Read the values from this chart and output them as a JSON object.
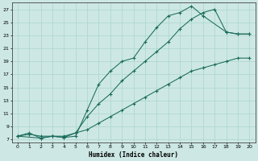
{
  "xlabel": "Humidex (Indice chaleur)",
  "bg_color": "#cde8e4",
  "grid_color": "#b0d8d0",
  "line_color": "#1a6b5a",
  "xlim": [
    -0.5,
    20.5
  ],
  "ylim": [
    6.5,
    28.0
  ],
  "xticks": [
    0,
    1,
    2,
    3,
    4,
    5,
    6,
    7,
    8,
    9,
    10,
    11,
    12,
    13,
    14,
    15,
    16,
    17,
    18,
    19,
    20
  ],
  "yticks": [
    7,
    9,
    11,
    13,
    15,
    17,
    19,
    21,
    23,
    25,
    27
  ],
  "line_peak_x": [
    0,
    1,
    2,
    3,
    4,
    5,
    6,
    7,
    8,
    9,
    10,
    11,
    12,
    13,
    14,
    15,
    16,
    18,
    19,
    20
  ],
  "line_peak_y": [
    7.5,
    8.0,
    7.2,
    7.5,
    7.3,
    7.5,
    11.5,
    15.5,
    17.5,
    19.0,
    19.5,
    22.0,
    24.2,
    26.0,
    26.5,
    27.5,
    26.0,
    23.5,
    23.2,
    23.2
  ],
  "line_mid_x": [
    0,
    2,
    3,
    4,
    5,
    6,
    7,
    8,
    9,
    10,
    11,
    12,
    13,
    14,
    15,
    16,
    17,
    18,
    19,
    20
  ],
  "line_mid_y": [
    7.5,
    7.2,
    7.5,
    7.3,
    8.0,
    10.5,
    12.5,
    14.0,
    16.0,
    17.5,
    19.0,
    20.5,
    22.0,
    24.0,
    25.5,
    26.5,
    27.0,
    23.5,
    23.2,
    23.2
  ],
  "line_low_x": [
    0,
    1,
    2,
    3,
    4,
    5,
    6,
    7,
    8,
    9,
    10,
    11,
    12,
    13,
    14,
    15,
    16,
    17,
    18,
    19,
    20
  ],
  "line_low_y": [
    7.5,
    7.8,
    7.5,
    7.5,
    7.5,
    8.0,
    8.5,
    9.5,
    10.5,
    11.5,
    12.5,
    13.5,
    14.5,
    15.5,
    16.5,
    17.5,
    18.0,
    18.5,
    19.0,
    19.5,
    19.5
  ]
}
